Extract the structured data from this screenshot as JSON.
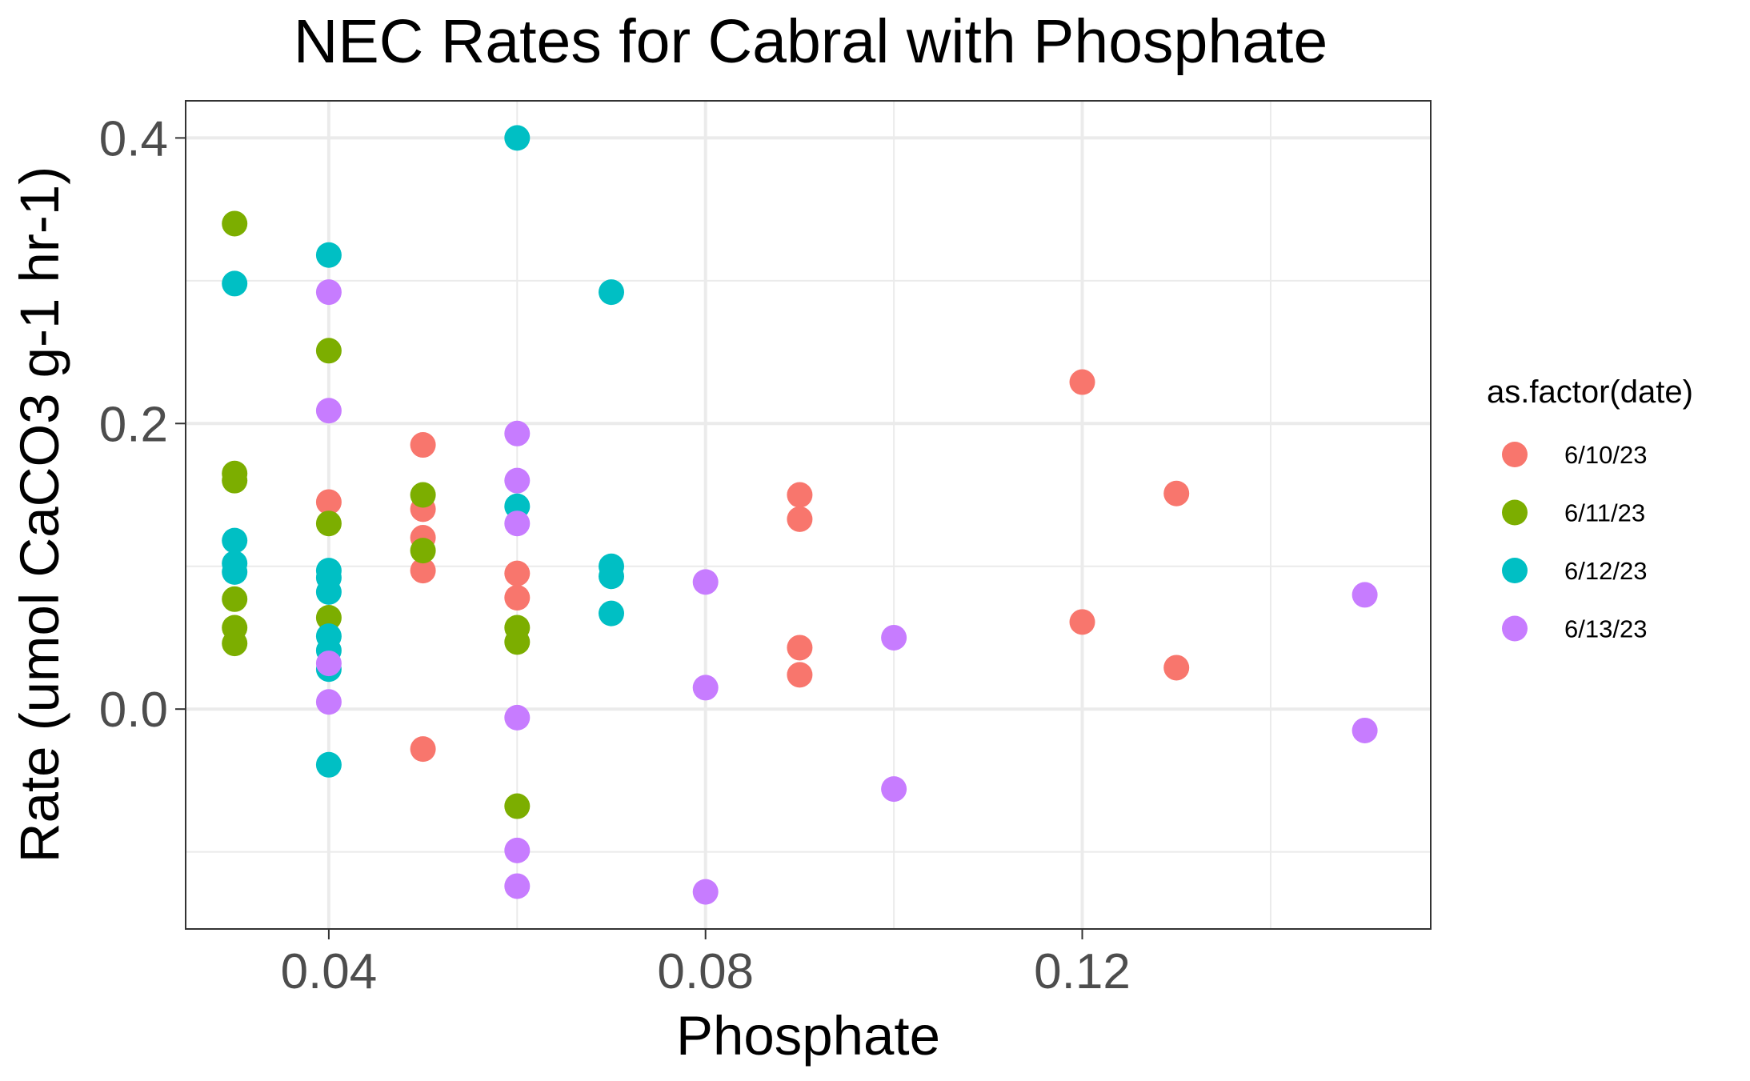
{
  "chart_data": {
    "type": "scatter",
    "title": "NEC Rates for Cabral with Phosphate",
    "xlabel": "Phosphate",
    "ylabel": "Rate (umol CaCO3 g-1 hr-1)",
    "xlim": [
      0.0248,
      0.157
    ],
    "ylim": [
      -0.154,
      0.426
    ],
    "x_ticks": [
      {
        "value": 0.04,
        "label": "0.04"
      },
      {
        "value": 0.08,
        "label": "0.08"
      },
      {
        "value": 0.12,
        "label": "0.12"
      }
    ],
    "y_ticks": [
      {
        "value": 0.0,
        "label": "0.0"
      },
      {
        "value": 0.2,
        "label": "0.2"
      },
      {
        "value": 0.4,
        "label": "0.4"
      }
    ],
    "x_minor": [
      0.06,
      0.1,
      0.14
    ],
    "y_minor": [
      -0.1,
      0.1,
      0.3
    ],
    "grid": true,
    "legend": {
      "title": "as.factor(date)",
      "position": "right"
    },
    "series": [
      {
        "name": "6/10/23",
        "color": "#F8766D",
        "points": [
          [
            0.04,
            0.145
          ],
          [
            0.05,
            0.185
          ],
          [
            0.05,
            0.14
          ],
          [
            0.05,
            0.12
          ],
          [
            0.05,
            0.097
          ],
          [
            0.05,
            -0.028
          ],
          [
            0.06,
            0.095
          ],
          [
            0.06,
            0.078
          ],
          [
            0.09,
            0.15
          ],
          [
            0.09,
            0.133
          ],
          [
            0.09,
            0.043
          ],
          [
            0.09,
            0.024
          ],
          [
            0.12,
            0.229
          ],
          [
            0.12,
            0.061
          ],
          [
            0.13,
            0.151
          ],
          [
            0.13,
            0.029
          ]
        ]
      },
      {
        "name": "6/11/23",
        "color": "#7CAE00",
        "points": [
          [
            0.03,
            0.34
          ],
          [
            0.03,
            0.165
          ],
          [
            0.03,
            0.16
          ],
          [
            0.03,
            0.077
          ],
          [
            0.03,
            0.057
          ],
          [
            0.03,
            0.046
          ],
          [
            0.04,
            0.251
          ],
          [
            0.04,
            0.13
          ],
          [
            0.04,
            0.064
          ],
          [
            0.05,
            0.15
          ],
          [
            0.05,
            0.111
          ],
          [
            0.06,
            0.057
          ],
          [
            0.06,
            0.047
          ],
          [
            0.06,
            -0.068
          ]
        ]
      },
      {
        "name": "6/12/23",
        "color": "#00BFC4",
        "points": [
          [
            0.03,
            0.298
          ],
          [
            0.03,
            0.118
          ],
          [
            0.03,
            0.102
          ],
          [
            0.03,
            0.096
          ],
          [
            0.04,
            0.318
          ],
          [
            0.04,
            0.097
          ],
          [
            0.04,
            0.092
          ],
          [
            0.04,
            0.082
          ],
          [
            0.04,
            0.051
          ],
          [
            0.04,
            0.041
          ],
          [
            0.04,
            0.028
          ],
          [
            0.04,
            -0.039
          ],
          [
            0.06,
            0.4
          ],
          [
            0.06,
            0.142
          ],
          [
            0.07,
            0.292
          ],
          [
            0.07,
            0.1
          ],
          [
            0.07,
            0.093
          ],
          [
            0.07,
            0.067
          ]
        ]
      },
      {
        "name": "6/13/23",
        "color": "#C77CFF",
        "points": [
          [
            0.04,
            0.292
          ],
          [
            0.04,
            0.209
          ],
          [
            0.04,
            0.032
          ],
          [
            0.04,
            0.005
          ],
          [
            0.06,
            0.193
          ],
          [
            0.06,
            0.16
          ],
          [
            0.06,
            0.13
          ],
          [
            0.06,
            -0.006
          ],
          [
            0.06,
            -0.099
          ],
          [
            0.06,
            -0.124
          ],
          [
            0.08,
            0.089
          ],
          [
            0.08,
            0.015
          ],
          [
            0.08,
            -0.128
          ],
          [
            0.1,
            0.05
          ],
          [
            0.1,
            -0.056
          ],
          [
            0.15,
            0.08
          ],
          [
            0.15,
            -0.015
          ]
        ]
      }
    ]
  }
}
